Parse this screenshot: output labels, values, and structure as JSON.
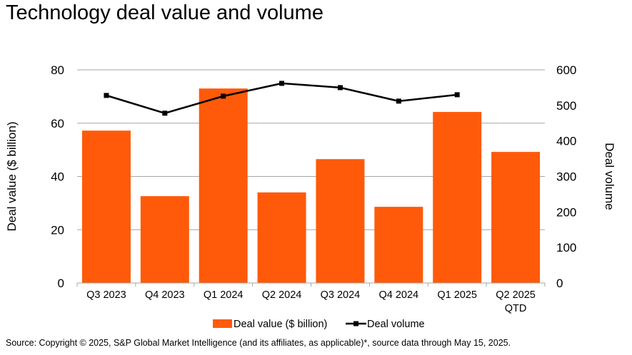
{
  "chart_data": {
    "type": "bar",
    "title": "Technology deal value and volume",
    "categories": [
      "Q3 2023",
      "Q4 2023",
      "Q1 2024",
      "Q2 2024",
      "Q3 2024",
      "Q4 2024",
      "Q1 2025",
      "Q2 2025\nQTD"
    ],
    "series": [
      {
        "name": "Deal value ($ billion)",
        "type": "bar",
        "axis": "left",
        "color": "#FF5A0A",
        "values": [
          57.2,
          32.6,
          73.0,
          34.0,
          46.5,
          28.6,
          64.2,
          49.2
        ]
      },
      {
        "name": "Deal volume",
        "type": "line",
        "axis": "right",
        "color": "#000000",
        "values": [
          528,
          478,
          526,
          562,
          550,
          512,
          530,
          null
        ]
      }
    ],
    "ylabel": "Deal value ($ billion)",
    "y2label": "Deal volume",
    "ylim": [
      0,
      80
    ],
    "y2lim": [
      0,
      600
    ],
    "yticks": [
      0,
      20,
      40,
      60,
      80
    ],
    "y2ticks": [
      0,
      100,
      200,
      300,
      400,
      500,
      600
    ],
    "grid": true,
    "legend": "bottom"
  },
  "source": "Source: Copyright © 2025, S&P Global Market Intelligence (and its affiliates, as applicable)*, source data through May 15, 2025."
}
